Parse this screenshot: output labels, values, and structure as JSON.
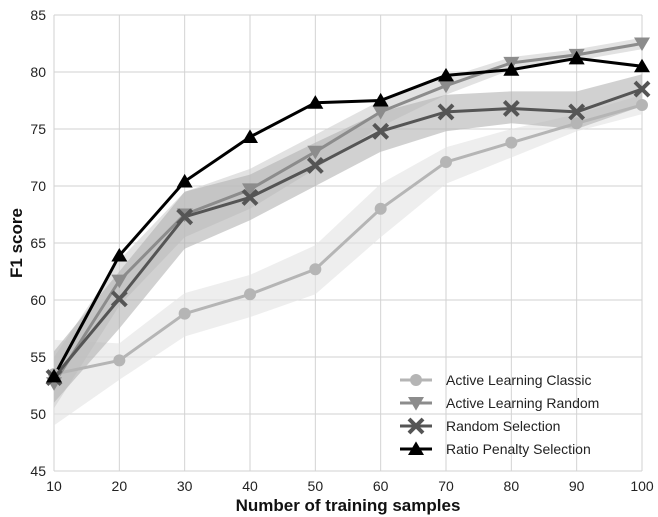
{
  "chart_data": {
    "type": "line",
    "title": "",
    "xlabel": "Number of training samples",
    "ylabel": "F1 score",
    "xlim": [
      10,
      100
    ],
    "ylim": [
      45,
      85
    ],
    "x_ticks": [
      "10",
      "20",
      "30",
      "40",
      "50",
      "60",
      "70",
      "80",
      "90",
      "100"
    ],
    "y_ticks": [
      "45",
      "50",
      "55",
      "60",
      "65",
      "70",
      "75",
      "80",
      "85"
    ],
    "grid": true,
    "legend_position": "bottom-right",
    "x": [
      10,
      20,
      30,
      40,
      50,
      60,
      70,
      80,
      90,
      100
    ],
    "series": [
      {
        "name": "Active Learning Classic",
        "color": "#b5b5b5",
        "band_color": "#e3e3e3",
        "marker": "circle",
        "values": [
          53.5,
          54.7,
          58.8,
          60.5,
          62.7,
          68.0,
          72.1,
          73.8,
          75.5,
          77.1
        ],
        "lower": [
          49.0,
          53.0,
          56.8,
          58.5,
          60.5,
          65.5,
          70.2,
          72.5,
          74.8,
          76.3
        ],
        "upper": [
          56.5,
          56.2,
          60.6,
          62.2,
          64.8,
          70.2,
          73.4,
          75.0,
          76.3,
          78.0
        ]
      },
      {
        "name": "Active Learning Random",
        "color": "#8c8c8c",
        "band_color": "#cfcfcf",
        "marker": "triangle-down",
        "values": [
          52.7,
          61.7,
          67.5,
          69.7,
          73.0,
          76.5,
          78.8,
          80.8,
          81.5,
          82.5
        ],
        "lower": [
          50.5,
          59.5,
          65.5,
          68.0,
          71.5,
          75.2,
          78.0,
          80.2,
          81.0,
          82.0
        ],
        "upper": [
          55.0,
          63.5,
          69.5,
          71.5,
          74.5,
          77.5,
          79.5,
          81.3,
          82.0,
          83.0
        ]
      },
      {
        "name": "Random Selection",
        "color": "#555555",
        "band_color": "#b2b2b2",
        "marker": "x",
        "values": [
          53.2,
          60.1,
          67.3,
          69.0,
          71.8,
          74.8,
          76.5,
          76.8,
          76.5,
          78.5
        ],
        "lower": [
          51.0,
          57.5,
          64.5,
          67.0,
          70.0,
          73.0,
          74.8,
          75.5,
          75.0,
          77.0
        ],
        "upper": [
          55.5,
          62.5,
          69.5,
          71.0,
          73.8,
          76.5,
          78.0,
          78.3,
          78.3,
          79.8
        ]
      },
      {
        "name": "Ratio Penalty Selection",
        "color": "#000000",
        "band_color": null,
        "marker": "triangle-up",
        "values": [
          53.3,
          63.9,
          70.4,
          74.3,
          77.3,
          77.5,
          79.7,
          80.2,
          81.2,
          80.5
        ]
      }
    ]
  }
}
